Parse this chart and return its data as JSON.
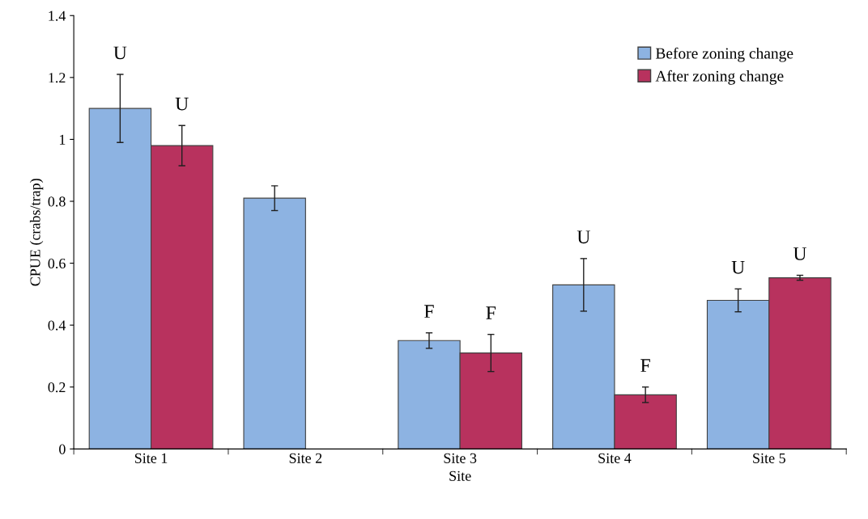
{
  "chart_data": {
    "type": "bar",
    "xlabel": "Site",
    "ylabel": "CPUE (crabs/trap)",
    "categories": [
      "Site 1",
      "Site 2",
      "Site 3",
      "Site 4",
      "Site 5"
    ],
    "series": [
      {
        "name": "Before zoning change",
        "color": "#8db3e2",
        "values": [
          1.1,
          0.81,
          0.35,
          0.53,
          0.48
        ],
        "errors": [
          0.11,
          0.04,
          0.025,
          0.085,
          0.037
        ],
        "value_labels": [
          "U",
          null,
          "F",
          "U",
          "U"
        ]
      },
      {
        "name": "After zoning change",
        "color": "#b8325e",
        "values": [
          0.98,
          null,
          0.31,
          0.175,
          0.553
        ],
        "errors": [
          0.065,
          null,
          0.06,
          0.025,
          0.008
        ],
        "value_labels": [
          "U",
          null,
          "F",
          "F",
          "U"
        ]
      }
    ],
    "ylim": [
      0,
      1.4
    ],
    "yticks": [
      0,
      0.2,
      0.4,
      0.6,
      0.8,
      1,
      1.2,
      1.4
    ],
    "grid": false,
    "legend": "top right"
  }
}
